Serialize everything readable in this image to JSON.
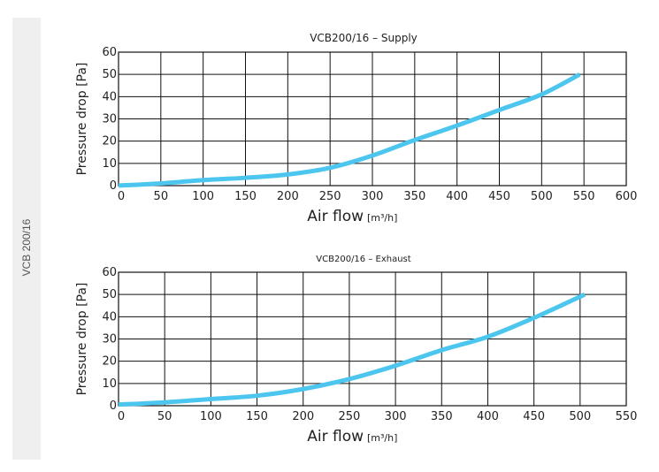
{
  "side_label": "VCB 200/16",
  "chart_data": [
    {
      "type": "line",
      "title": "VCB200/16 – Supply",
      "xlabel": "Air flow",
      "xunit": "[m³/h]",
      "ylabel": "Pressure drop [Pa]",
      "xlim": [
        0,
        600
      ],
      "ylim": [
        0,
        60
      ],
      "xticks": [
        0,
        50,
        100,
        150,
        200,
        250,
        300,
        350,
        400,
        450,
        500,
        550,
        600
      ],
      "yticks": [
        0,
        10,
        20,
        30,
        40,
        50,
        60
      ],
      "grid": true,
      "color": "#4cc6ee",
      "x": [
        0,
        50,
        100,
        150,
        200,
        250,
        300,
        350,
        400,
        450,
        500,
        545
      ],
      "y": [
        0,
        1,
        2.5,
        3.5,
        5,
        8,
        13.5,
        20.5,
        27,
        34,
        41,
        50
      ]
    },
    {
      "type": "line",
      "title": "VCB200/16 – Exhaust",
      "xlabel": "Air flow",
      "xunit": "[m³/h]",
      "ylabel": "Pressure drop [Pa]",
      "xlim": [
        0,
        550
      ],
      "ylim": [
        0,
        60
      ],
      "xticks": [
        0,
        50,
        100,
        150,
        200,
        250,
        300,
        350,
        400,
        450,
        500,
        550
      ],
      "yticks": [
        0,
        10,
        20,
        30,
        40,
        50,
        60
      ],
      "grid": true,
      "color": "#4cc6ee",
      "x": [
        0,
        50,
        100,
        150,
        200,
        250,
        300,
        350,
        400,
        450,
        505
      ],
      "y": [
        0.5,
        1.5,
        3,
        4.5,
        7.5,
        12,
        18,
        25,
        31,
        39.5,
        50
      ]
    }
  ]
}
